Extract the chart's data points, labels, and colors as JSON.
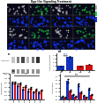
{
  "title": "Dpp-like Signaling Treatment",
  "micro_rows": 2,
  "micro_cols": 4,
  "wb_bands": {
    "n_lanes": 6,
    "row1_intensities": [
      0.25,
      0.55,
      0.8,
      0.3,
      0.6,
      0.9
    ],
    "row2_intensities": [
      0.6,
      0.6,
      0.6,
      0.6,
      0.6,
      0.6
    ],
    "row1_label": "Act-β-cat",
    "row2_label": "GAPDH"
  },
  "panel_d": {
    "blue_values": [
      1.0,
      3.5
    ],
    "red_values": [
      1.0,
      1.4
    ],
    "blue_errs": [
      0.08,
      0.25
    ],
    "red_errs": [
      0.08,
      0.12
    ],
    "blue_color": "#1133bb",
    "red_color": "#cc1111",
    "ylabel": "Act-β-cat/GAPDH",
    "ylim": [
      0,
      4.5
    ],
    "sig_blue": "***",
    "sig_red": "ns"
  },
  "panel_e": {
    "blue_values": [
      1.0,
      0.85,
      0.65,
      0.55,
      0.45,
      0.4
    ],
    "red_values": [
      1.0,
      0.95,
      0.8,
      0.7,
      0.6,
      0.55
    ],
    "blue_errs": [
      0.07,
      0.07,
      0.06,
      0.06,
      0.05,
      0.05
    ],
    "red_errs": [
      0.07,
      0.06,
      0.06,
      0.05,
      0.05,
      0.04
    ],
    "blue_color": "#1133bb",
    "red_color": "#cc1111",
    "ylabel": "Axin2/GAPDH",
    "ylim": [
      0,
      1.5
    ],
    "n_groups": 6
  },
  "panel_f": {
    "blue_values": [
      0.15,
      0.95,
      0.25,
      0.75,
      0.2,
      0.55
    ],
    "red_values": [
      0.1,
      0.45,
      0.15,
      0.35,
      0.12,
      0.25
    ],
    "blue_errs": [
      0.02,
      0.08,
      0.03,
      0.07,
      0.02,
      0.06
    ],
    "red_errs": [
      0.02,
      0.04,
      0.02,
      0.04,
      0.02,
      0.03
    ],
    "blue_color": "#1133bb",
    "red_color": "#cc1111",
    "ylabel": "Lef1/GAPDH",
    "ylim": [
      0,
      1.3
    ],
    "n_groups": 6
  },
  "bg_color": "#ffffff",
  "blue_color": "#1133bb",
  "red_color": "#cc1111"
}
